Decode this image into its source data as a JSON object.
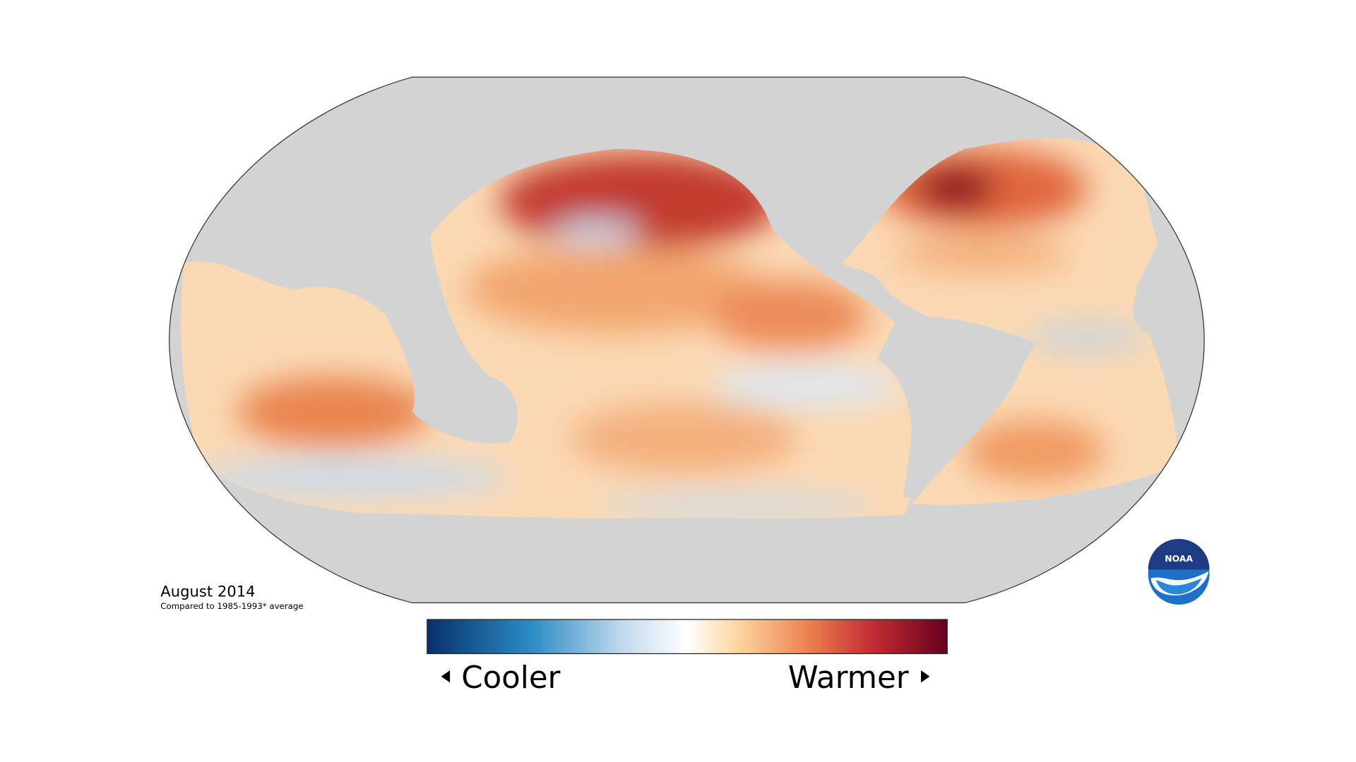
{
  "caption": {
    "title": "August 2014",
    "subtitle": "Compared to 1985-1993* average"
  },
  "legend": {
    "low_label": "Cooler",
    "high_label": "Warmer"
  },
  "logo": {
    "text": "NOAA"
  }
}
